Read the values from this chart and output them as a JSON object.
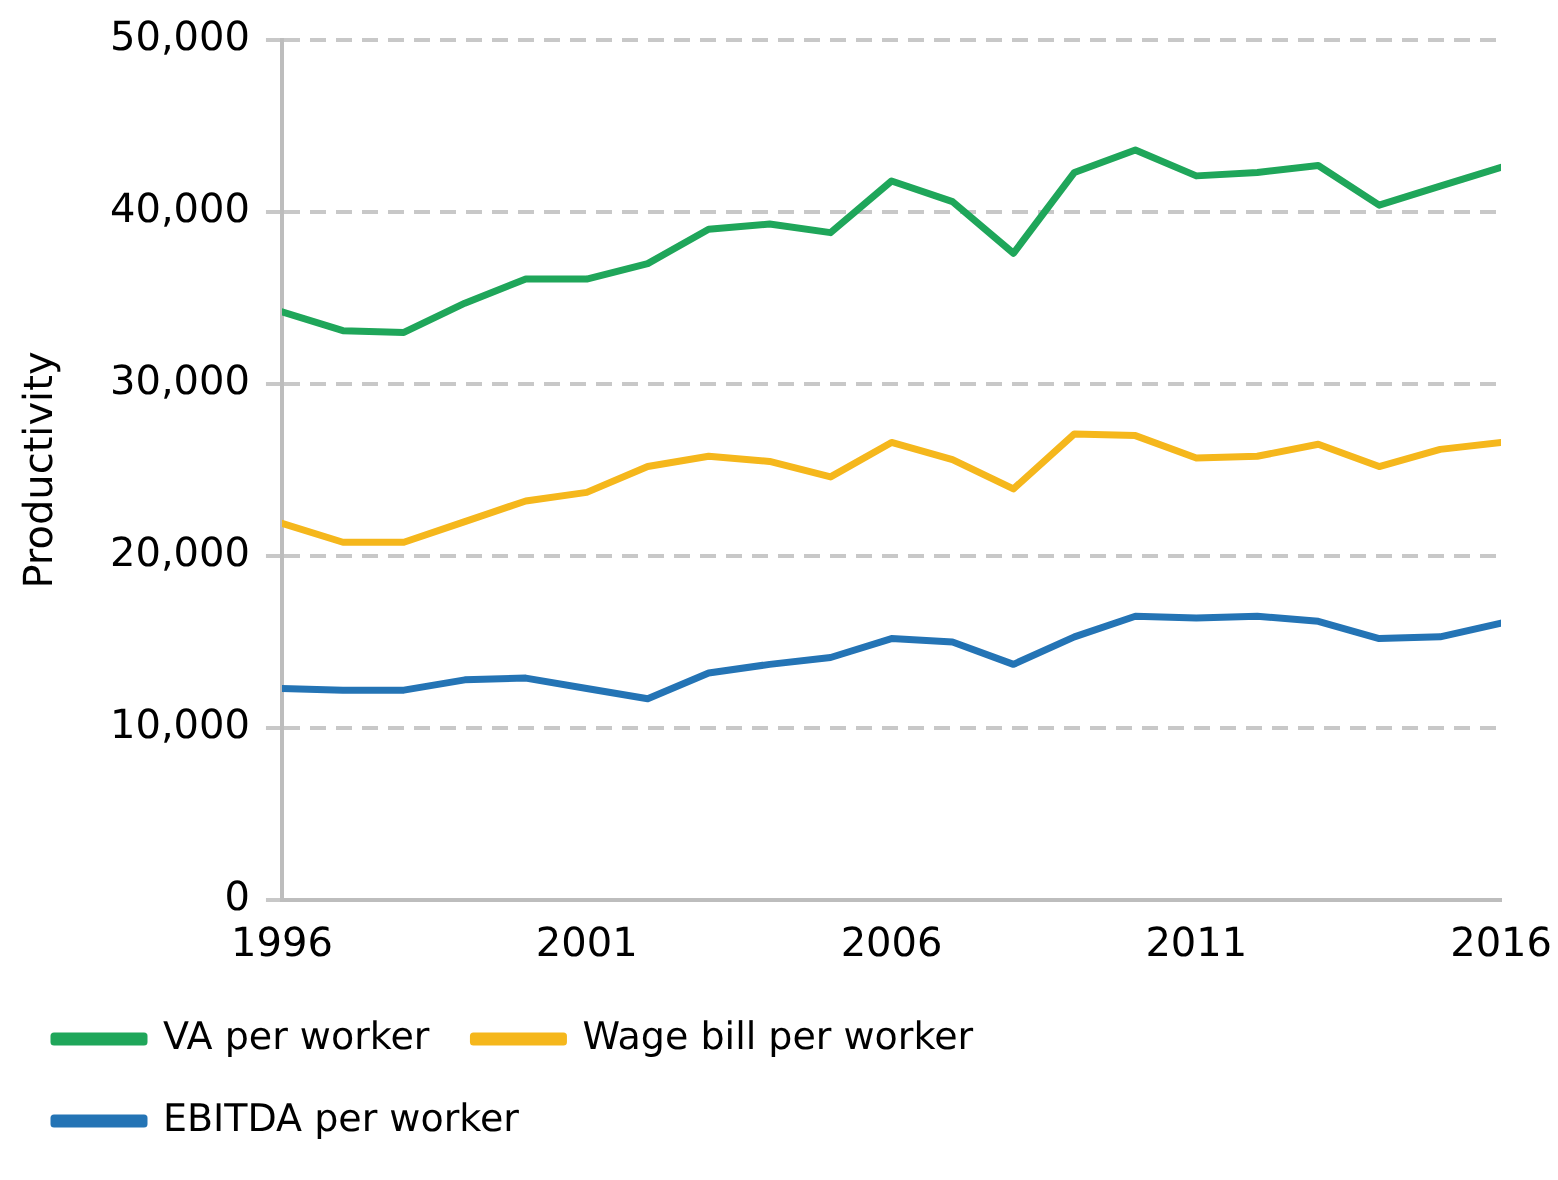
{
  "chart_data": {
    "type": "line",
    "ylabel": "Productivity",
    "x": [
      1996,
      1997,
      1998,
      1999,
      2000,
      2001,
      2002,
      2003,
      2004,
      2005,
      2006,
      2007,
      2008,
      2009,
      2010,
      2011,
      2012,
      2013,
      2014,
      2015,
      2016
    ],
    "series": [
      {
        "name": "VA per worker",
        "color": "#1fa65a",
        "values": [
          34200,
          33100,
          33000,
          34700,
          36100,
          36100,
          37000,
          39000,
          39300,
          38800,
          41800,
          40600,
          37600,
          42300,
          43600,
          42100,
          42300,
          42700,
          40400,
          41500,
          42600
        ]
      },
      {
        "name": "Wage bill per worker",
        "color": "#f5b71c",
        "values": [
          21900,
          20800,
          20800,
          22000,
          23200,
          23700,
          25200,
          25800,
          25500,
          24600,
          26600,
          25600,
          23900,
          27100,
          27000,
          25700,
          25800,
          26500,
          25200,
          26200,
          26600
        ]
      },
      {
        "name": "EBITDA per worker",
        "color": "#2474b5",
        "values": [
          12300,
          12200,
          12200,
          12800,
          12900,
          12300,
          11700,
          13200,
          13700,
          14100,
          15200,
          15000,
          13700,
          15300,
          16500,
          16400,
          16500,
          16200,
          15200,
          15300,
          16100
        ]
      }
    ],
    "xlim": [
      1996,
      2016
    ],
    "xticks": [
      1996,
      2001,
      2006,
      2011,
      2016
    ],
    "ylim": [
      0,
      50000
    ],
    "yticks": [
      {
        "value": 0,
        "label": "0"
      },
      {
        "value": 10000,
        "label": "10,000"
      },
      {
        "value": 20000,
        "label": "20,000"
      },
      {
        "value": 30000,
        "label": "30,000"
      },
      {
        "value": 40000,
        "label": "40,000"
      },
      {
        "value": 50000,
        "label": "50,000"
      }
    ],
    "grid": "y",
    "legend": "bottom",
    "marker": "none",
    "line_style": "solid"
  }
}
